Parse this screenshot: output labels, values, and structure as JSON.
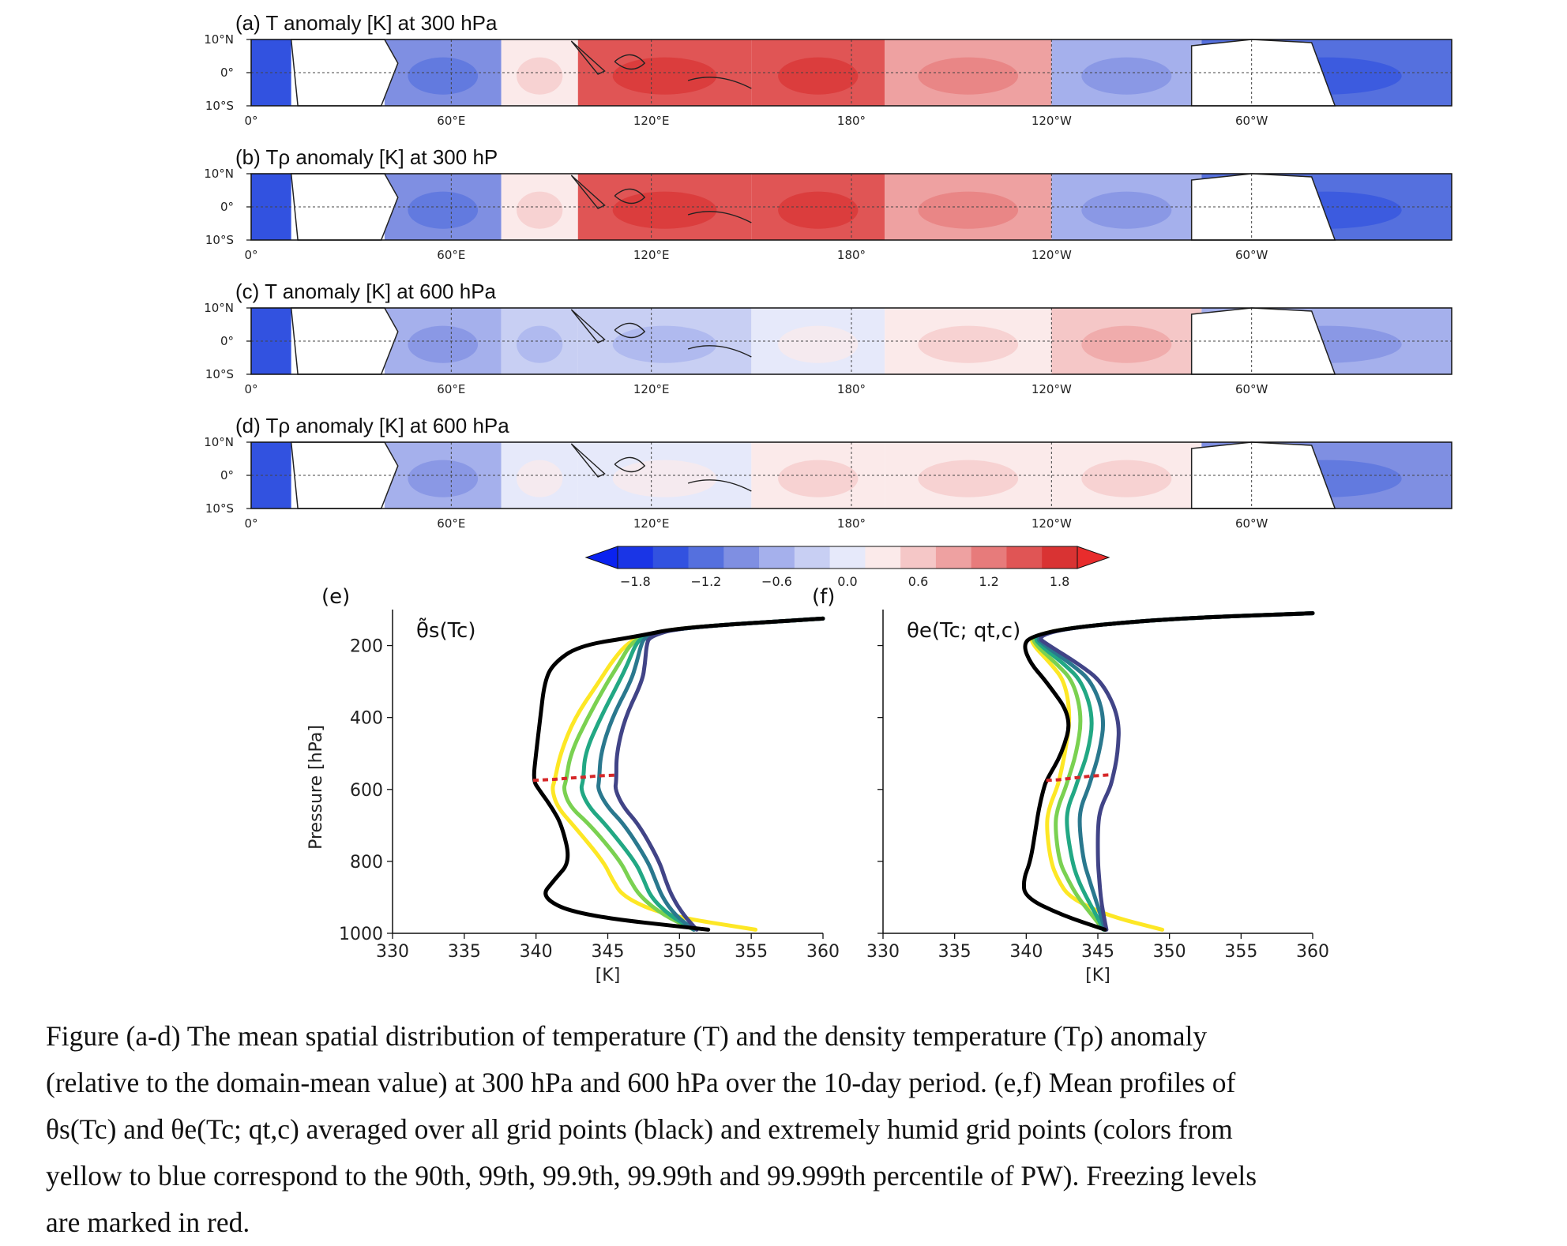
{
  "chart_data": [
    {
      "type": "heatmap",
      "panel": "a",
      "title": "(a) T anomaly [K]  at 300 hPa",
      "lat_ticks": [
        "10°N",
        "0°",
        "10°S"
      ],
      "lon_ticks": [
        "0°",
        "60°E",
        "120°E",
        "180°",
        "120°W",
        "60°W"
      ],
      "anomaly_by_region": {
        "indian_ocean_west": -0.9,
        "indian_ocean_east": 0.3,
        "maritime_continent": 1.5,
        "west_pacific": 1.6,
        "central_pacific": 0.9,
        "east_pacific": -0.6,
        "america_atlantic": -1.2
      }
    },
    {
      "type": "heatmap",
      "panel": "b",
      "title": "(b) Tρ anomaly [K]  at 300 hP",
      "lat_ticks": [
        "10°N",
        "0°",
        "10°S"
      ],
      "lon_ticks": [
        "0°",
        "60°E",
        "120°E",
        "180°",
        "120°W",
        "60°W"
      ],
      "anomaly_by_region": {
        "indian_ocean_west": -0.9,
        "indian_ocean_east": 0.4,
        "maritime_continent": 1.5,
        "west_pacific": 1.6,
        "central_pacific": 0.9,
        "east_pacific": -0.6,
        "america_atlantic": -1.2
      }
    },
    {
      "type": "heatmap",
      "panel": "c",
      "title": "(c) T anomaly [K]  at 600 hPa",
      "lat_ticks": [
        "10°N",
        "0°",
        "10°S"
      ],
      "lon_ticks": [
        "0°",
        "60°E",
        "120°E",
        "180°",
        "120°W",
        "60°W"
      ],
      "anomaly_by_region": {
        "indian_ocean_west": -0.5,
        "indian_ocean_east": -0.3,
        "maritime_continent": -0.2,
        "west_pacific": 0.2,
        "central_pacific": 0.5,
        "east_pacific": 0.7,
        "america_atlantic": -0.6
      }
    },
    {
      "type": "heatmap",
      "panel": "d",
      "title": "(d) Tρ anomaly [K]  at 600 hPa",
      "lat_ticks": [
        "10°N",
        "0°",
        "10°S"
      ],
      "lon_ticks": [
        "0°",
        "60°E",
        "120°E",
        "180°",
        "120°W",
        "60°W"
      ],
      "anomaly_by_region": {
        "indian_ocean_west": -0.5,
        "indian_ocean_east": 0.1,
        "maritime_continent": 0.1,
        "west_pacific": 0.3,
        "central_pacific": 0.3,
        "east_pacific": 0.4,
        "america_atlantic": -0.8
      }
    },
    {
      "type": "colorbar",
      "range": [
        -1.8,
        1.8
      ],
      "step": 0.3,
      "tick_labels": [
        "−1.8",
        "−1.2",
        "−0.6",
        "0.0",
        "0.6",
        "1.2",
        "1.8"
      ],
      "colors": [
        "#1a35e6",
        "#3252e0",
        "#5570de",
        "#7f8fe2",
        "#a5b0ec",
        "#c8cff3",
        "#e6e9fa",
        "#fbeaea",
        "#f5c7c7",
        "#eea1a1",
        "#e77b7b",
        "#e05555",
        "#d93333"
      ],
      "extend": "both"
    },
    {
      "type": "line",
      "panel": "e",
      "label": "(e)",
      "title": "θ̃s(Tc)",
      "xlabel": "[K]",
      "ylabel": "Pressure [hPa]",
      "xlim": [
        330,
        360
      ],
      "ylim": [
        1000,
        100
      ],
      "y_inverted": true,
      "xticks": [
        330,
        335,
        340,
        345,
        350,
        355,
        360
      ],
      "yticks": [
        200,
        400,
        600,
        800,
        1000
      ],
      "pressure": [
        125,
        150,
        175,
        200,
        250,
        300,
        400,
        500,
        575,
        600,
        650,
        700,
        800,
        850,
        900,
        950,
        990
      ],
      "series": [
        {
          "color": "#000000",
          "values": [
            360,
            350,
            347,
            343,
            341.2,
            340.6,
            340.3,
            340.0,
            339.8,
            340.2,
            341.1,
            341.8,
            342.4,
            341.3,
            340.3,
            343.0,
            352.0
          ]
        },
        {
          "color": "#fde725",
          "values": [
            360,
            350,
            347.2,
            346.2,
            345.2,
            344.4,
            342.7,
            341.7,
            341.3,
            341.1,
            341.5,
            342.6,
            344.7,
            345.3,
            346.1,
            349.0,
            355.3
          ]
        },
        {
          "color": "#7ad151",
          "values": [
            360,
            350,
            347.3,
            346.5,
            345.8,
            345.0,
            343.6,
            342.4,
            342.1,
            341.9,
            342.4,
            343.8,
            345.9,
            346.5,
            347.3,
            348.9,
            351.0
          ]
        },
        {
          "color": "#22a884",
          "values": [
            360,
            350,
            347.4,
            346.9,
            346.4,
            345.8,
            344.5,
            343.4,
            343.3,
            343.1,
            343.7,
            344.9,
            346.9,
            347.5,
            348.0,
            349.3,
            351.0
          ]
        },
        {
          "color": "#2a788e",
          "values": [
            360,
            350,
            347.6,
            347.3,
            347.0,
            346.6,
            345.3,
            344.5,
            344.4,
            344.3,
            345.0,
            346.2,
            347.8,
            348.3,
            348.8,
            349.7,
            351.0
          ]
        },
        {
          "color": "#414487",
          "values": [
            360,
            350,
            347.9,
            347.7,
            347.6,
            347.4,
            346.2,
            345.6,
            345.6,
            345.5,
            346.1,
            347.2,
            348.6,
            349.0,
            349.5,
            350.3,
            351.2
          ]
        }
      ],
      "freezing_level": {
        "color": "#d62728",
        "pressure": [
          575,
          572,
          569,
          566,
          562,
          560
        ],
        "x": [
          339.8,
          341.3,
          342.1,
          343.3,
          344.4,
          345.6
        ]
      }
    },
    {
      "type": "line",
      "panel": "f",
      "label": "(f)",
      "title": "θe(Tc; qt,c)",
      "xlabel": "[K]",
      "xlim": [
        330,
        360
      ],
      "ylim": [
        1000,
        100
      ],
      "y_inverted": true,
      "xticks": [
        330,
        335,
        340,
        345,
        350,
        355,
        360
      ],
      "pressure": [
        110,
        125,
        150,
        175,
        200,
        250,
        300,
        400,
        500,
        575,
        600,
        650,
        700,
        800,
        850,
        900,
        950,
        990
      ],
      "series": [
        {
          "color": "#000000",
          "values": [
            360,
            350,
            343,
            340.3,
            339.8,
            340.3,
            341.4,
            343.2,
            342.5,
            341.4,
            341.2,
            340.9,
            340.7,
            340.3,
            339.8,
            339.9,
            342.5,
            345.5
          ]
        },
        {
          "color": "#fde725",
          "values": [
            360,
            350,
            343,
            340.3,
            340.5,
            341.7,
            342.7,
            343.1,
            342.7,
            342.3,
            342.1,
            341.6,
            341.4,
            341.7,
            342.2,
            343.0,
            345.6,
            349.5
          ]
        },
        {
          "color": "#7ad151",
          "values": [
            360,
            350,
            343,
            340.4,
            340.7,
            342.1,
            343.3,
            343.9,
            343.5,
            342.9,
            342.7,
            342.2,
            342.0,
            342.3,
            342.9,
            343.6,
            344.6,
            345.4
          ]
        },
        {
          "color": "#22a884",
          "values": [
            360,
            350,
            343,
            340.5,
            341.0,
            342.6,
            343.9,
            344.7,
            344.3,
            343.6,
            343.4,
            342.9,
            342.8,
            343.2,
            343.6,
            344.2,
            344.9,
            345.4
          ]
        },
        {
          "color": "#2a788e",
          "values": [
            360,
            350,
            343,
            340.6,
            341.3,
            343.1,
            344.6,
            345.5,
            345.1,
            344.5,
            344.3,
            343.8,
            343.7,
            344.0,
            344.4,
            344.8,
            345.2,
            345.5
          ]
        },
        {
          "color": "#414487",
          "values": [
            360,
            350,
            343,
            340.7,
            341.6,
            343.6,
            345.3,
            346.5,
            346.4,
            346.0,
            345.8,
            345.2,
            345.0,
            345.0,
            345.1,
            345.2,
            345.4,
            345.6
          ]
        }
      ],
      "freezing_level": {
        "color": "#d62728",
        "pressure": [
          575,
          573,
          570,
          567,
          563,
          559
        ],
        "x": [
          341.4,
          342.3,
          342.9,
          343.6,
          344.5,
          346.0
        ]
      }
    }
  ],
  "caption": {
    "lines": [
      "Figure (a-d) The mean spatial distribution of temperature (T) and the density temperature (Tρ) anomaly",
      "(relative to the domain-mean value) at 300 hPa and 600 hPa over the 10-day period. (e,f) Mean profiles of",
      "θs(Tc) and θe(Tc; qt,c) averaged over all grid points (black) and extremely humid grid points (colors from",
      "yellow to blue correspond to the 90th, 99th, 99.9th, 99.99th and 99.999th percentile of PW). Freezing levels",
      "are marked in red."
    ]
  }
}
